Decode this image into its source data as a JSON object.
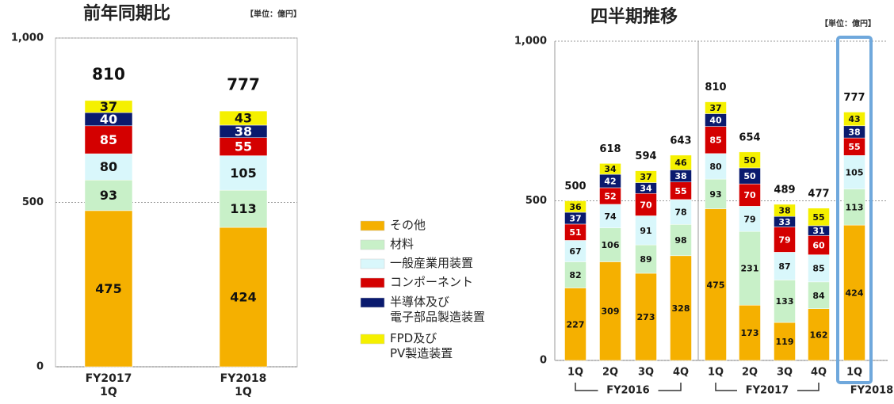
{
  "legend": {
    "items": [
      {
        "name": "その他",
        "color": "#f5b000"
      },
      {
        "name": "材料",
        "color": "#c8f0c8"
      },
      {
        "name": "一般産業用装置",
        "color": "#d9f7fb"
      },
      {
        "name": "コンポーネント",
        "color": "#d40000"
      },
      {
        "name": "半導体及び\n電子部品製造装置",
        "color": "#0a1a6e"
      },
      {
        "name": "FPD及び\nPV製造装置",
        "color": "#f5f000"
      }
    ]
  },
  "chart_data": [
    {
      "type": "stacked_bar",
      "title": "前年同期比",
      "unit": "【単位：億円】",
      "categories": [
        "FY2017\n1Q",
        "FY2018\n1Q"
      ],
      "series": [
        {
          "values": [
            475,
            424
          ]
        },
        {
          "values": [
            93,
            113
          ]
        },
        {
          "values": [
            80,
            105
          ]
        },
        {
          "values": [
            85,
            55
          ]
        },
        {
          "values": [
            40,
            38
          ]
        },
        {
          "values": [
            37,
            43
          ]
        }
      ],
      "totals": [
        810,
        777
      ],
      "ylim": [
        0,
        1000
      ],
      "yticks": [
        0,
        500,
        {
          "value": 1000,
          "label": "1,000"
        }
      ],
      "grid": true
    },
    {
      "type": "stacked_bar",
      "title": "四半期推移",
      "unit": "【単位：億円】",
      "categories": [
        "1Q",
        "2Q",
        "3Q",
        "4Q",
        "1Q",
        "2Q",
        "3Q",
        "4Q",
        "1Q"
      ],
      "groups": [
        "FY2016",
        "FY2017",
        "FY2018"
      ],
      "series": [
        {
          "values": [
            227,
            309,
            273,
            328,
            475,
            173,
            119,
            162,
            424
          ]
        },
        {
          "values": [
            82,
            106,
            89,
            98,
            93,
            231,
            133,
            84,
            113
          ]
        },
        {
          "values": [
            67,
            74,
            91,
            78,
            80,
            79,
            87,
            85,
            105
          ]
        },
        {
          "values": [
            51,
            52,
            70,
            55,
            85,
            70,
            79,
            60,
            55
          ]
        },
        {
          "values": [
            37,
            42,
            34,
            38,
            40,
            50,
            33,
            31,
            38
          ]
        },
        {
          "values": [
            36,
            34,
            37,
            46,
            37,
            50,
            38,
            55,
            43
          ]
        }
      ],
      "totals": [
        500,
        618,
        594,
        643,
        810,
        654,
        489,
        477,
        777
      ],
      "ylim": [
        0,
        1000
      ],
      "yticks": [
        0,
        500,
        {
          "value": 1000,
          "label": "1,000"
        }
      ],
      "grid": true
    }
  ]
}
